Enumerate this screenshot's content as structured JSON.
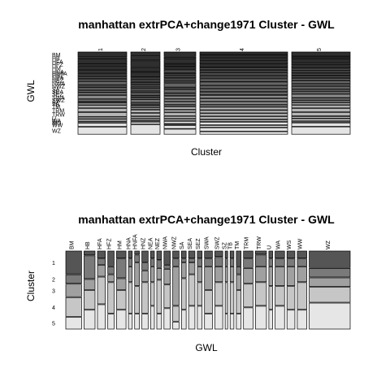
{
  "chart_data": [
    {
      "type": "mosaic",
      "title": "manhattan extrPCA+change1971 Cluster - GWL",
      "xlabel": "Cluster",
      "ylabel": "GWL",
      "clusters": [
        "1",
        "2",
        "3",
        "4",
        "5"
      ],
      "gwl_labels": [
        "BM",
        "HB",
        "HFA",
        "HFZ",
        "HM",
        "HNA",
        "HNFA",
        "HNZ",
        "NEA",
        "NEZ",
        "NWA",
        "NWZ",
        "SA",
        "SEA",
        "SEZ",
        "SWA",
        "SWZ",
        "SZ",
        "TB",
        "TM",
        "TRM",
        "TRW",
        "U",
        "WA",
        "WS",
        "WW",
        "WZ"
      ],
      "cluster_widths": [
        0.2,
        0.12,
        0.13,
        0.36,
        0.24
      ],
      "shades": [
        "#2f2f2f",
        "#4a4a4a",
        "#666666",
        "#8a8a8a",
        "#b6b6b6",
        "#e2e2e2"
      ],
      "cluster_bands": [
        [
          0.07,
          0.03,
          0.05,
          0.03,
          0.06,
          0.03,
          0.02,
          0.03,
          0.03,
          0.03,
          0.05,
          0.03,
          0.04,
          0.03,
          0.03,
          0.05,
          0.03,
          0.02,
          0.03,
          0.04,
          0.05,
          0.06,
          0.03,
          0.03,
          0.02,
          0.05,
          0.1
        ],
        [
          0.05,
          0.08,
          0.1,
          0.07,
          0.08,
          0.03,
          0.04,
          0.04,
          0.03,
          0.03,
          0.03,
          0.03,
          0.04,
          0.03,
          0.03,
          0.04,
          0.03,
          0.02,
          0.03,
          0.03,
          0.05,
          0.05,
          0.03,
          0.03,
          0.02,
          0.04,
          0.15
        ],
        [
          0.07,
          0.04,
          0.06,
          0.04,
          0.04,
          0.05,
          0.03,
          0.04,
          0.04,
          0.03,
          0.06,
          0.03,
          0.05,
          0.04,
          0.04,
          0.04,
          0.04,
          0.03,
          0.04,
          0.04,
          0.05,
          0.04,
          0.03,
          0.04,
          0.02,
          0.05,
          0.08
        ],
        [
          0.04,
          0.04,
          0.04,
          0.04,
          0.04,
          0.03,
          0.03,
          0.04,
          0.04,
          0.04,
          0.05,
          0.04,
          0.04,
          0.04,
          0.04,
          0.04,
          0.04,
          0.03,
          0.04,
          0.04,
          0.04,
          0.04,
          0.03,
          0.04,
          0.03,
          0.05,
          0.04
        ],
        [
          0.06,
          0.03,
          0.05,
          0.03,
          0.04,
          0.03,
          0.03,
          0.03,
          0.03,
          0.03,
          0.04,
          0.03,
          0.04,
          0.03,
          0.03,
          0.05,
          0.03,
          0.03,
          0.03,
          0.04,
          0.05,
          0.05,
          0.03,
          0.03,
          0.02,
          0.05,
          0.1
        ]
      ],
      "gwl_widths": [
        0.05,
        0.035,
        0.025,
        0.02,
        0.03,
        0.012,
        0.015,
        0.02,
        0.012,
        0.015,
        0.02,
        0.02,
        0.015,
        0.02,
        0.015,
        0.025,
        0.025,
        0.008,
        0.012,
        0.015,
        0.03,
        0.035,
        0.012,
        0.03,
        0.025,
        0.03,
        0.13
      ],
      "gwl_cluster_props": [
        [
          0.3,
          0.12,
          0.17,
          0.25,
          0.16
        ],
        [
          0.06,
          0.3,
          0.14,
          0.25,
          0.25
        ],
        [
          0.1,
          0.08,
          0.15,
          0.35,
          0.32
        ],
        [
          0.2,
          0.1,
          0.1,
          0.4,
          0.2
        ],
        [
          0.1,
          0.25,
          0.15,
          0.25,
          0.25
        ],
        [
          0.1,
          0.1,
          0.2,
          0.4,
          0.2
        ],
        [
          0.05,
          0.1,
          0.3,
          0.35,
          0.2
        ],
        [
          0.15,
          0.1,
          0.15,
          0.4,
          0.2
        ],
        [
          0.1,
          0.1,
          0.2,
          0.3,
          0.3
        ],
        [
          0.12,
          0.1,
          0.15,
          0.43,
          0.2
        ],
        [
          0.18,
          0.05,
          0.2,
          0.3,
          0.27
        ],
        [
          0.1,
          0.1,
          0.5,
          0.2,
          0.1
        ],
        [
          0.1,
          0.05,
          0.2,
          0.4,
          0.25
        ],
        [
          0.1,
          0.05,
          0.15,
          0.4,
          0.3
        ],
        [
          0.1,
          0.1,
          0.2,
          0.3,
          0.3
        ],
        [
          0.1,
          0.1,
          0.3,
          0.3,
          0.2
        ],
        [
          0.08,
          0.12,
          0.2,
          0.3,
          0.3
        ],
        [
          0.1,
          0.1,
          0.2,
          0.4,
          0.2
        ],
        [
          0.1,
          0.1,
          0.2,
          0.4,
          0.2
        ],
        [
          0.2,
          0.1,
          0.2,
          0.3,
          0.2
        ],
        [
          0.1,
          0.12,
          0.2,
          0.3,
          0.28
        ],
        [
          0.05,
          0.15,
          0.2,
          0.3,
          0.3
        ],
        [
          0.1,
          0.1,
          0.25,
          0.3,
          0.25
        ],
        [
          0.1,
          0.1,
          0.25,
          0.25,
          0.3
        ],
        [
          0.1,
          0.1,
          0.25,
          0.3,
          0.25
        ],
        [
          0.1,
          0.1,
          0.2,
          0.35,
          0.25
        ],
        [
          0.22,
          0.12,
          0.12,
          0.2,
          0.34
        ]
      ]
    },
    {
      "type": "mosaic",
      "title": "manhattan extrPCA+change1971 Cluster - GWL",
      "xlabel": "GWL",
      "ylabel": "Cluster"
    }
  ]
}
